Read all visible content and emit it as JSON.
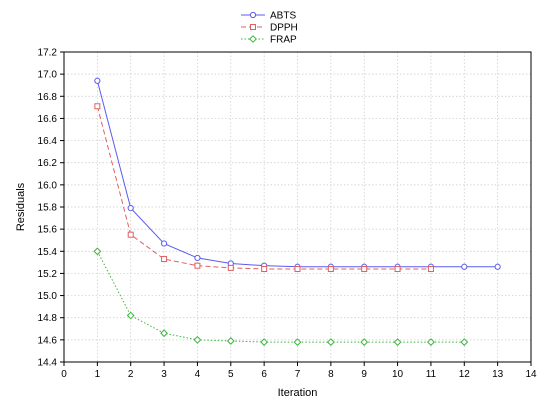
{
  "chart_data": {
    "type": "line",
    "title": "",
    "xlabel": "Iteration",
    "ylabel": "Residuals",
    "xlim": [
      0,
      14
    ],
    "ylim": [
      14.4,
      17.2
    ],
    "x_ticks": [
      0,
      1,
      2,
      3,
      4,
      5,
      6,
      7,
      8,
      9,
      10,
      11,
      12,
      13,
      14
    ],
    "y_ticks": [
      14.4,
      14.6,
      14.8,
      15.0,
      15.2,
      15.4,
      15.6,
      15.8,
      16.0,
      16.2,
      16.4,
      16.6,
      16.8,
      17.0,
      17.2
    ],
    "grid": true,
    "legend_position": "top-center",
    "series": [
      {
        "name": "ABTS",
        "color": "#5b5bf0",
        "line_style": "solid",
        "marker": "circle",
        "x": [
          1,
          2,
          3,
          4,
          5,
          6,
          7,
          8,
          9,
          10,
          11,
          12,
          13
        ],
        "values": [
          16.94,
          15.79,
          15.47,
          15.34,
          15.29,
          15.27,
          15.26,
          15.26,
          15.26,
          15.26,
          15.26,
          15.26,
          15.26
        ]
      },
      {
        "name": "DPPH",
        "color": "#e06060",
        "line_style": "dashed",
        "marker": "square",
        "x": [
          1,
          2,
          3,
          4,
          5,
          6,
          7,
          8,
          9,
          10,
          11
        ],
        "values": [
          16.71,
          15.55,
          15.33,
          15.27,
          15.25,
          15.24,
          15.24,
          15.24,
          15.24,
          15.24,
          15.24
        ]
      },
      {
        "name": "FRAP",
        "color": "#3cb43c",
        "line_style": "dotted",
        "marker": "diamond",
        "x": [
          1,
          2,
          3,
          4,
          5,
          6,
          7,
          8,
          9,
          10,
          11,
          12
        ],
        "values": [
          15.4,
          14.82,
          14.66,
          14.6,
          14.59,
          14.58,
          14.58,
          14.58,
          14.58,
          14.58,
          14.58,
          14.58
        ]
      }
    ]
  }
}
